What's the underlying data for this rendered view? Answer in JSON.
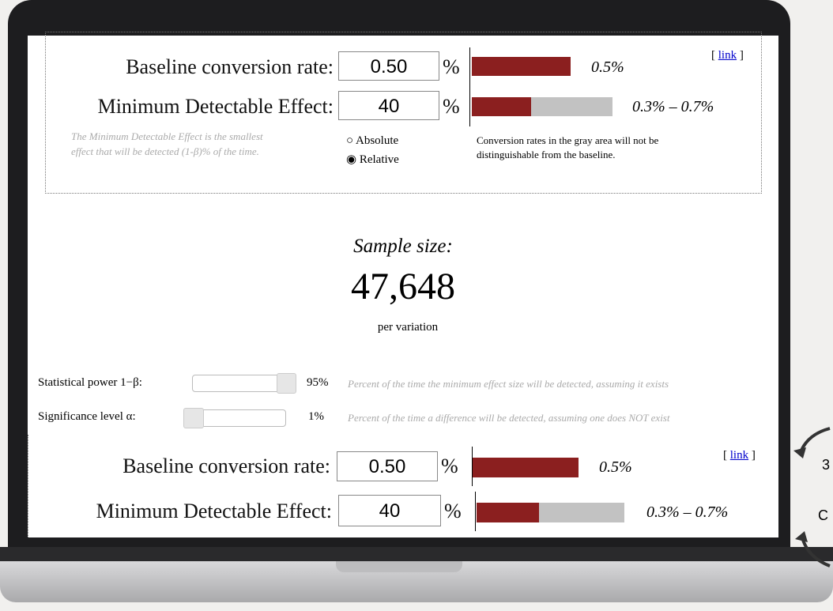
{
  "top_panel": {
    "link_open": "[",
    "link": "link",
    "link_close": "]",
    "baseline_label": "Baseline conversion rate:",
    "baseline_value": "0.50",
    "percent": "%",
    "baseline_bar_label": "0.5%",
    "mde_label": "Minimum Detectable Effect:",
    "mde_value": "40",
    "mde_bar_label": "0.3% – 0.7%",
    "mde_note": [
      "The Minimum Detectable Effect is the smallest",
      "effect that will be detected (1-β)% of the time."
    ],
    "options": [
      "Absolute",
      "Relative"
    ],
    "gray_note": [
      "Conversion rates in the gray area will not be",
      "distinguishable from the baseline."
    ]
  },
  "result": {
    "label": "Sample size:",
    "value": "47,648",
    "unit": "per variation"
  },
  "sliders": [
    {
      "label": "Statistical power 1−β:",
      "value": "95%",
      "note": "Percent of the time the minimum effect size will be detected, assuming it exists"
    },
    {
      "label": "Significance level α:",
      "value": "1%",
      "note": "Percent of the time a difference will be detected, assuming one does NOT exist"
    }
  ],
  "bottom_panel": {
    "link_open": "[",
    "link": "link",
    "link_close": "]",
    "baseline_label": "Baseline conversion rate:",
    "baseline_value": "0.50",
    "percent": "%",
    "baseline_bar_label": "0.5%",
    "mde_label": "Minimum Detectable Effect:",
    "mde_value": "40",
    "mde_bar_label": "0.3% – 0.7%"
  },
  "side_text": [
    "3",
    "C"
  ]
}
